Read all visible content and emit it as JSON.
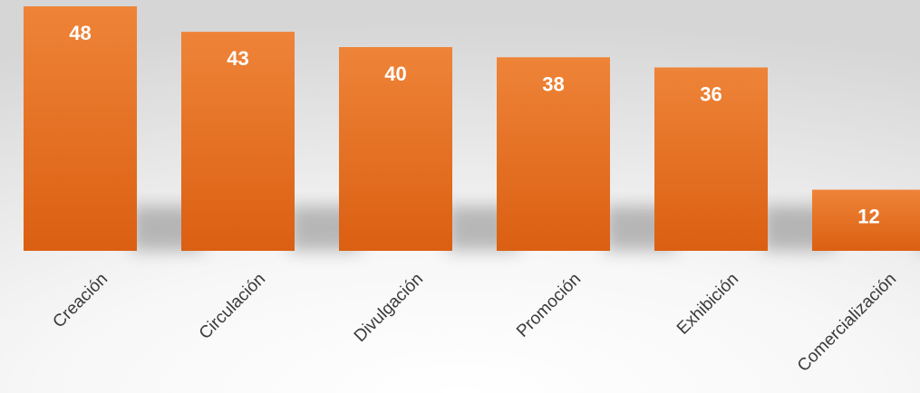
{
  "chart_data": {
    "type": "bar",
    "categories": [
      "Creación",
      "Circulación",
      "Divulgación",
      "Promoción",
      "Exhibición",
      "Comercialización"
    ],
    "values": [
      48,
      43,
      40,
      38,
      36,
      12
    ],
    "data_labels": [
      "48",
      "43",
      "40",
      "38",
      "36",
      "12"
    ],
    "title": "",
    "xlabel": "",
    "ylabel": "",
    "ylim": [
      0,
      48
    ],
    "grid": false,
    "legend": "none",
    "bar_color_top": "#ee8438",
    "bar_color_bottom": "#db5f12",
    "label_color": "#ffffff",
    "category_label_color": "#3a3a3a"
  }
}
